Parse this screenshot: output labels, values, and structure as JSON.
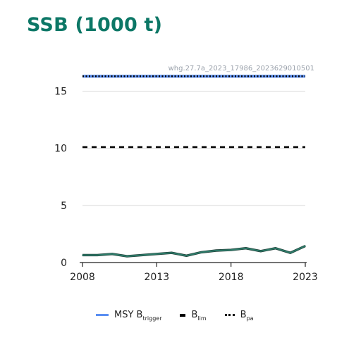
{
  "title": "SSB (1000 t)",
  "stock_id": "whg.27.7a_2023_17986_2023629010501",
  "legend": {
    "msy": {
      "main": "MSY B",
      "sub": "trigger"
    },
    "blim": {
      "main": "B",
      "sub": "lim"
    },
    "bpa": {
      "main": "B",
      "sub": "pa"
    }
  },
  "colors": {
    "ssb": "#2e7d6b",
    "msy": "#5b8ff2",
    "reference": "#000000",
    "grid": "#d9d9d9"
  },
  "chart_data": {
    "type": "line",
    "title": "SSB (1000 t)",
    "xlim": [
      2008,
      2023
    ],
    "ylim": [
      0,
      17
    ],
    "xticks": [
      2008,
      2013,
      2018,
      2023
    ],
    "yticks": [
      0,
      5,
      10,
      15
    ],
    "grid": true,
    "legend_position": "bottom",
    "series": [
      {
        "type": "line",
        "x": [
          2008,
          2009,
          2010,
          2011,
          2012,
          2013,
          2014,
          2015,
          2016,
          2017,
          2018,
          2019,
          2020,
          2021,
          2022,
          2023
        ],
        "values": [
          0.65,
          0.65,
          0.75,
          0.55,
          0.65,
          0.75,
          0.85,
          0.6,
          0.9,
          1.05,
          1.1,
          1.25,
          1.0,
          1.25,
          0.85,
          1.45
        ]
      }
    ],
    "reference_lines": [
      {
        "name": "MSY Btrigger",
        "y": 16.3,
        "style": "solid",
        "color": "#5b8ff2"
      },
      {
        "name": "Bpa",
        "y": 16.3,
        "style": "dotted",
        "color": "#000000"
      },
      {
        "name": "Blim",
        "y": 10.1,
        "style": "dashed",
        "color": "#000000"
      }
    ]
  }
}
